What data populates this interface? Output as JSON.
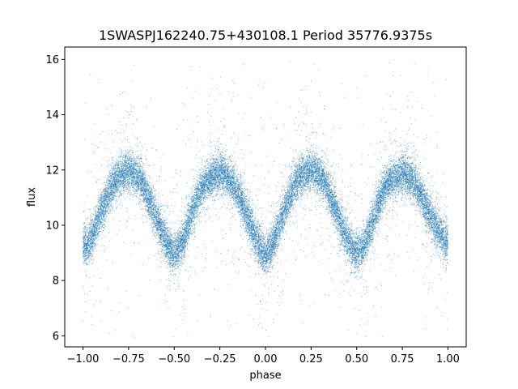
{
  "chart_data": {
    "type": "scatter",
    "title": "1SWASPJ162240.75+430108.1 Period 35776.9375s",
    "xlabel": "phase",
    "ylabel": "flux",
    "xlim": [
      -1.1,
      1.1
    ],
    "ylim": [
      5.6,
      16.45
    ],
    "xticks": [
      -1.0,
      -0.75,
      -0.5,
      -0.25,
      0.0,
      0.25,
      0.5,
      0.75,
      1.0
    ],
    "xtick_labels": [
      "−1.00",
      "−0.75",
      "−0.50",
      "−0.25",
      "0.00",
      "0.25",
      "0.50",
      "0.75",
      "1.00"
    ],
    "yticks": [
      6,
      8,
      10,
      12,
      14,
      16
    ],
    "ytick_labels": [
      "6",
      "8",
      "10",
      "12",
      "14",
      "16"
    ],
    "grid": false,
    "legend": "none",
    "marker_color": "#1f77b4",
    "series": [
      {
        "phase_range": [
          -1.0,
          1.0
        ],
        "profile_x": [
          -1.0,
          -0.98,
          -0.95,
          -0.9,
          -0.85,
          -0.8,
          -0.75,
          -0.72,
          -0.68,
          -0.64,
          -0.6,
          -0.56,
          -0.52,
          -0.5,
          -0.47,
          -0.44,
          -0.4,
          -0.36,
          -0.32,
          -0.28,
          -0.24,
          -0.22,
          -0.18,
          -0.14,
          -0.1,
          -0.06,
          -0.02,
          0.0,
          0.03,
          0.06,
          0.1,
          0.14,
          0.18,
          0.22,
          0.26,
          0.28,
          0.32,
          0.36,
          0.4,
          0.44,
          0.48,
          0.5,
          0.53,
          0.56,
          0.6,
          0.64,
          0.68,
          0.72,
          0.76,
          0.78,
          0.82,
          0.86,
          0.9,
          0.94,
          0.98,
          1.0
        ],
        "profile_y": [
          9.3,
          9.2,
          9.6,
          10.5,
          11.3,
          11.8,
          12.0,
          11.9,
          11.6,
          11.0,
          10.3,
          9.6,
          9.1,
          9.0,
          9.2,
          9.7,
          10.5,
          11.2,
          11.6,
          11.8,
          11.9,
          11.8,
          11.5,
          11.0,
          10.3,
          9.6,
          9.1,
          8.9,
          9.2,
          9.7,
          10.5,
          11.2,
          11.7,
          11.9,
          12.0,
          11.9,
          11.6,
          11.0,
          10.3,
          9.6,
          9.1,
          9.0,
          9.1,
          9.6,
          10.4,
          11.2,
          11.6,
          11.8,
          11.9,
          11.8,
          11.5,
          11.0,
          10.4,
          9.9,
          9.5,
          9.4
        ],
        "core_scatter": 0.35,
        "point_count": 22000,
        "outlier_count": 700,
        "outlier_range": [
          5.9,
          16.0
        ]
      }
    ]
  }
}
